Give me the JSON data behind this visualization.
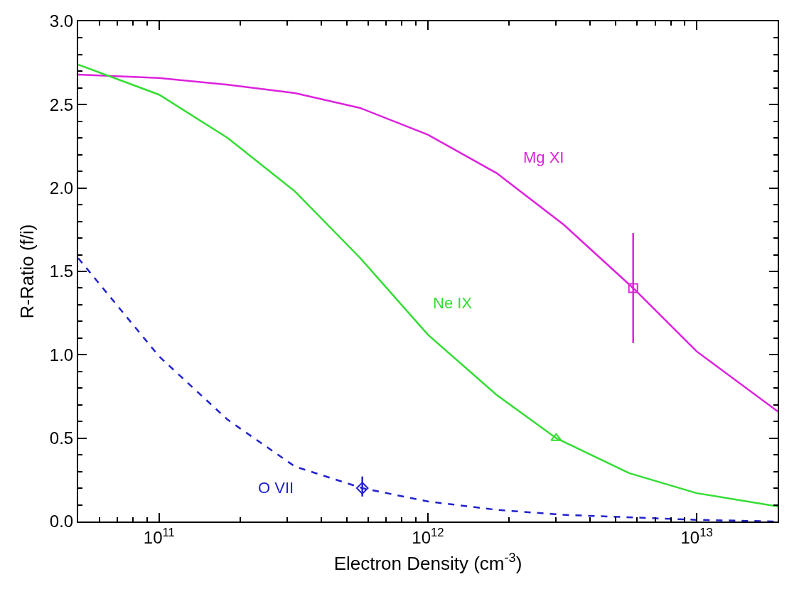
{
  "chart_data": {
    "type": "line",
    "xlabel": "Electron Density (cm$^{-3}$)",
    "ylabel": "R-Ratio (f/i)",
    "log": "x",
    "legend": false,
    "xlim": [
      50000000000.0,
      20000000000000.0
    ],
    "xticks": [
      {
        "value": 100000000000.0,
        "label": "10$^{11}$"
      },
      {
        "value": 1000000000000.0,
        "label": "10$^{12}$"
      },
      {
        "value": 10000000000000.0,
        "label": "10$^{13}$"
      }
    ],
    "ylim": [
      0,
      3
    ],
    "yticks": [
      {
        "value": 0,
        "label": "0.0"
      },
      {
        "value": 0.5,
        "label": "0.5"
      },
      {
        "value": 1,
        "label": "1.0"
      },
      {
        "value": 1.5,
        "label": "1.5"
      },
      {
        "value": 2,
        "label": "2.0"
      },
      {
        "value": 2.5,
        "label": "2.5"
      },
      {
        "value": 3,
        "label": "3.0"
      }
    ],
    "series": [
      {
        "name": "Mg XI",
        "color": "#dd22dd",
        "line_style": "solid",
        "marker": "none",
        "x": [
          50000000000.0,
          100000000000.0,
          180000000000.0,
          320000000000.0,
          560000000000.0,
          1000000000000.0,
          1800000000000.0,
          3200000000000.0,
          5800000000000.0,
          10000000000000.0,
          20000000000000.0
        ],
        "values": [
          2.68,
          2.66,
          2.62,
          2.57,
          2.48,
          2.32,
          2.09,
          1.78,
          1.4,
          1.02,
          0.66
        ]
      },
      {
        "name": "Ne IX",
        "color": "#33dd33",
        "line_style": "solid",
        "marker": "none",
        "x": [
          50000000000.0,
          100000000000.0,
          180000000000.0,
          320000000000.0,
          560000000000.0,
          1000000000000.0,
          1800000000000.0,
          3000000000000.0,
          5600000000000.0,
          10000000000000.0,
          20000000000000.0
        ],
        "values": [
          2.74,
          2.56,
          2.3,
          1.98,
          1.58,
          1.12,
          0.76,
          0.5,
          0.29,
          0.17,
          0.09
        ]
      },
      {
        "name": "O VII",
        "color": "#2222cc",
        "line_style": "dashed",
        "marker": "none",
        "x": [
          50000000000.0,
          100000000000.0,
          180000000000.0,
          320000000000.0,
          570000000000.0,
          1000000000000.0,
          1800000000000.0,
          3200000000000.0,
          10000000000000.0,
          20000000000000.0
        ],
        "values": [
          1.58,
          0.99,
          0.61,
          0.33,
          0.2,
          0.12,
          0.07,
          0.04,
          0.01,
          0.0
        ]
      },
      {
        "type": "scatter",
        "color": "#dd22dd",
        "marker": "square",
        "x": [
          5800000000000.0
        ],
        "values": [
          1.4
        ],
        "errors": [
          [
            1.07,
            1.73
          ]
        ]
      },
      {
        "type": "scatter",
        "color": "#33dd33",
        "marker": "triangle",
        "x": [
          3000000000000.0
        ],
        "values": [
          0.5
        ]
      },
      {
        "type": "scatter",
        "color": "#2222cc",
        "marker": "diamond",
        "x": [
          570000000000.0
        ],
        "values": [
          0.2
        ],
        "errors": [
          [
            0.15,
            0.27
          ]
        ]
      }
    ]
  }
}
